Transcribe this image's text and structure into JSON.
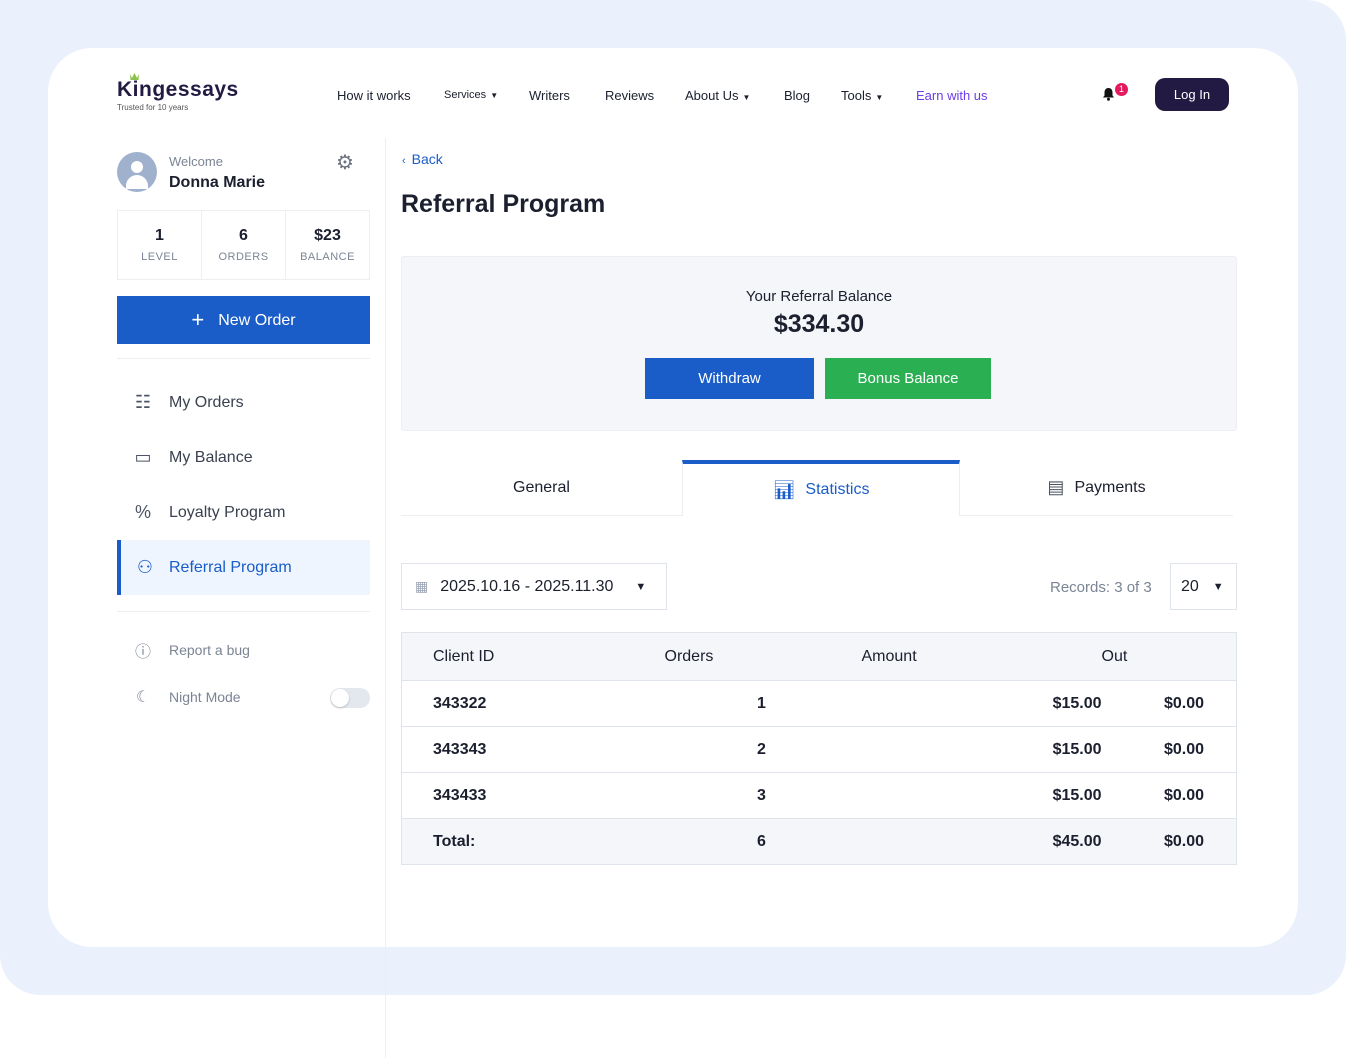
{
  "header": {
    "logo": "Kingessays",
    "tagline": "Trusted for 10 years",
    "nav": [
      {
        "label": "How it works"
      },
      {
        "label": "Services",
        "dropdown": true
      },
      {
        "label": "Writers"
      },
      {
        "label": "Reviews"
      },
      {
        "label": "About Us",
        "dropdown": true
      },
      {
        "label": "Blog"
      },
      {
        "label": "Tools",
        "dropdown": true
      },
      {
        "label": "Earn with us"
      }
    ],
    "notification_count": "1",
    "login": "Log In"
  },
  "sidebar": {
    "welcome": "Welcome",
    "user": "Donna Marie",
    "stats": [
      {
        "value": "1",
        "label": "LEVEL"
      },
      {
        "value": "6",
        "label": "ORDERS"
      },
      {
        "value": "$23",
        "label": "BALANCE"
      }
    ],
    "new_order": "New Order",
    "items": [
      {
        "label": "My Orders",
        "icon": "list-icon"
      },
      {
        "label": "My Balance",
        "icon": "wallet-icon"
      },
      {
        "label": "Loyalty Program",
        "icon": "percent-icon"
      },
      {
        "label": "Referral Program",
        "icon": "network-icon",
        "active": true
      }
    ],
    "report": "Report a bug",
    "night": "Night Mode",
    "night_on": false
  },
  "main": {
    "back": "Back",
    "title": "Referral Program",
    "balance_label": "Your Referral Balance",
    "balance": "$334.30",
    "withdraw": "Withdraw",
    "bonus": "Bonus Balance",
    "tabs": [
      {
        "label": "General"
      },
      {
        "label": "Statistics",
        "active": true
      },
      {
        "label": "Payments"
      }
    ],
    "date_range": "2025.10.16 - 2025.11.30",
    "records": "Records: 3 of 3",
    "per_page": "20",
    "table": {
      "headers": [
        "Client ID",
        "Orders",
        "Amount",
        "Out"
      ],
      "rows": [
        [
          "343322",
          "1",
          "$15.00",
          "$0.00"
        ],
        [
          "343343",
          "2",
          "$15.00",
          "$0.00"
        ],
        [
          "343433",
          "3",
          "$15.00",
          "$0.00"
        ]
      ],
      "total": [
        "Total:",
        "6",
        "$45.00",
        "$0.00"
      ]
    }
  },
  "colors": {
    "primary": "#1a5cc8",
    "success": "#2ab052",
    "brand_dark": "#221a43",
    "earn_link": "#6a3de8",
    "badge": "#e5195e"
  }
}
